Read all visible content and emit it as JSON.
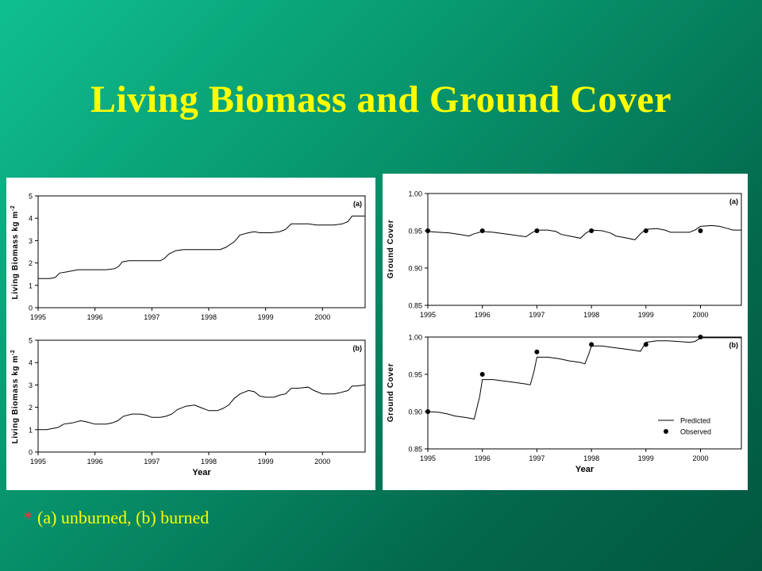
{
  "slide": {
    "title": "Living Biomass and Ground Cover",
    "footnote_bullet": "*",
    "footnote": "(a) unburned, (b) burned"
  },
  "colors": {
    "background": "#03684c",
    "title": "#ffff00",
    "bullet": "#ff3030",
    "line": "#000000"
  },
  "chart_data": [
    {
      "id": "biomass-a",
      "type": "line",
      "panel_label": "(a)",
      "ylabel": "Living Biomass kg m",
      "ylabel_sup": "-2",
      "xlabel": "",
      "x_ticks": [
        "1995",
        "1996",
        "1997",
        "1998",
        "1999",
        "2000"
      ],
      "xlim": [
        1995,
        2000.75
      ],
      "ylim": [
        0,
        5
      ],
      "y_ticks": [
        "0",
        "1",
        "2",
        "3",
        "4",
        "5"
      ],
      "series": [
        {
          "x": [
            1995.0,
            1995.08,
            1995.2,
            1995.3,
            1995.38,
            1995.5,
            1995.6,
            1995.7,
            1995.85,
            1996.0,
            1996.2,
            1996.35,
            1996.42,
            1996.48,
            1996.6,
            1996.8,
            1997.0,
            1997.15,
            1997.22,
            1997.3,
            1997.42,
            1997.55,
            1997.7,
            1997.85,
            1998.0,
            1998.2,
            1998.3,
            1998.45,
            1998.55,
            1998.7,
            1998.8,
            1998.9,
            1999.1,
            1999.25,
            1999.35,
            1999.45,
            1999.55,
            1999.75,
            1999.9,
            2000.0,
            2000.2,
            2000.35,
            2000.45,
            2000.52,
            2000.6,
            2000.75
          ],
          "y": [
            1.3,
            1.3,
            1.3,
            1.35,
            1.55,
            1.6,
            1.65,
            1.7,
            1.7,
            1.7,
            1.7,
            1.75,
            1.85,
            2.05,
            2.1,
            2.1,
            2.1,
            2.1,
            2.2,
            2.4,
            2.55,
            2.6,
            2.6,
            2.6,
            2.6,
            2.6,
            2.7,
            2.95,
            3.25,
            3.35,
            3.4,
            3.35,
            3.35,
            3.4,
            3.5,
            3.75,
            3.75,
            3.75,
            3.7,
            3.7,
            3.7,
            3.75,
            3.85,
            4.1,
            4.1,
            4.1
          ]
        }
      ]
    },
    {
      "id": "biomass-b",
      "type": "line",
      "panel_label": "(b)",
      "ylabel": "Living Biomass kg m",
      "ylabel_sup": "-2",
      "xlabel": "Year",
      "x_ticks": [
        "1995",
        "1996",
        "1997",
        "1998",
        "1999",
        "2000"
      ],
      "xlim": [
        1995,
        2000.75
      ],
      "ylim": [
        0,
        5
      ],
      "y_ticks": [
        "0",
        "1",
        "2",
        "3",
        "4",
        "5"
      ],
      "series": [
        {
          "x": [
            1995.0,
            1995.15,
            1995.25,
            1995.35,
            1995.45,
            1995.6,
            1995.75,
            1995.85,
            1996.0,
            1996.2,
            1996.3,
            1996.4,
            1996.5,
            1996.65,
            1996.8,
            1996.9,
            1997.0,
            1997.15,
            1997.25,
            1997.35,
            1997.45,
            1997.6,
            1997.75,
            1997.85,
            1998.0,
            1998.15,
            1998.25,
            1998.35,
            1998.45,
            1998.55,
            1998.7,
            1998.8,
            1998.9,
            1999.0,
            1999.15,
            1999.25,
            1999.35,
            1999.45,
            1999.55,
            1999.75,
            1999.85,
            2000.0,
            2000.2,
            2000.3,
            2000.45,
            2000.52,
            2000.6,
            2000.75
          ],
          "y": [
            1.0,
            1.0,
            1.05,
            1.1,
            1.25,
            1.3,
            1.4,
            1.35,
            1.25,
            1.25,
            1.3,
            1.4,
            1.6,
            1.7,
            1.7,
            1.65,
            1.55,
            1.55,
            1.6,
            1.7,
            1.9,
            2.05,
            2.1,
            2.0,
            1.85,
            1.85,
            1.95,
            2.1,
            2.4,
            2.6,
            2.75,
            2.7,
            2.5,
            2.45,
            2.45,
            2.55,
            2.6,
            2.85,
            2.85,
            2.9,
            2.75,
            2.6,
            2.6,
            2.65,
            2.75,
            2.95,
            2.95,
            3.0
          ]
        }
      ]
    },
    {
      "id": "cover-a",
      "type": "line",
      "panel_label": "(a)",
      "ylabel": "Ground Cover",
      "xlabel": "",
      "x_ticks": [
        "1995",
        "1996",
        "1997",
        "1998",
        "1999",
        "2000"
      ],
      "xlim": [
        1995,
        2000.75
      ],
      "ylim": [
        0.85,
        1.0
      ],
      "y_ticks": [
        "0.85",
        "0.90",
        "0.95",
        "1.00"
      ],
      "series": [
        {
          "name": "Predicted",
          "x": [
            1995.0,
            1995.2,
            1995.4,
            1995.6,
            1995.75,
            1995.85,
            1996.0,
            1996.2,
            1996.4,
            1996.6,
            1996.8,
            1996.9,
            1997.0,
            1997.2,
            1997.35,
            1997.45,
            1997.6,
            1997.8,
            1997.9,
            1998.0,
            1998.2,
            1998.35,
            1998.45,
            1998.6,
            1998.8,
            1998.9,
            1999.0,
            1999.2,
            1999.35,
            1999.45,
            1999.6,
            1999.8,
            1999.9,
            2000.0,
            2000.2,
            2000.35,
            2000.5,
            2000.6,
            2000.75
          ],
          "y": [
            0.949,
            0.948,
            0.947,
            0.945,
            0.943,
            0.946,
            0.949,
            0.948,
            0.946,
            0.944,
            0.942,
            0.947,
            0.951,
            0.951,
            0.949,
            0.945,
            0.943,
            0.94,
            0.947,
            0.951,
            0.95,
            0.947,
            0.943,
            0.941,
            0.938,
            0.946,
            0.952,
            0.953,
            0.951,
            0.948,
            0.948,
            0.948,
            0.951,
            0.956,
            0.957,
            0.956,
            0.953,
            0.951,
            0.951
          ]
        },
        {
          "name": "Observed",
          "x": [
            1995.0,
            1996.0,
            1997.0,
            1998.0,
            1999.0,
            2000.0
          ],
          "y": [
            0.95,
            0.95,
            0.95,
            0.95,
            0.95,
            0.95
          ]
        }
      ]
    },
    {
      "id": "cover-b",
      "type": "line",
      "panel_label": "(b)",
      "ylabel": "Ground Cover",
      "xlabel": "Year",
      "x_ticks": [
        "1995",
        "1996",
        "1997",
        "1998",
        "1999",
        "2000"
      ],
      "xlim": [
        1995,
        2000.75
      ],
      "ylim": [
        0.85,
        1.0
      ],
      "y_ticks": [
        "0.85",
        "0.90",
        "0.95",
        "1.00"
      ],
      "legend": {
        "position": "bottom-right",
        "entries": [
          "Predicted",
          "Observed"
        ]
      },
      "series": [
        {
          "name": "Predicted",
          "x": [
            1995.0,
            1995.2,
            1995.35,
            1995.5,
            1995.7,
            1995.85,
            1995.95,
            1996.0,
            1996.2,
            1996.4,
            1996.6,
            1996.8,
            1996.88,
            1996.95,
            1997.0,
            1997.2,
            1997.4,
            1997.6,
            1997.8,
            1997.88,
            1997.95,
            1998.0,
            1998.2,
            1998.4,
            1998.6,
            1998.8,
            1998.9,
            1999.0,
            1999.2,
            1999.4,
            1999.6,
            1999.8,
            1999.9,
            2000.0,
            2000.3,
            2000.5,
            2000.75
          ],
          "y": [
            0.9,
            0.899,
            0.897,
            0.894,
            0.892,
            0.89,
            0.92,
            0.943,
            0.943,
            0.941,
            0.939,
            0.937,
            0.936,
            0.955,
            0.973,
            0.973,
            0.971,
            0.968,
            0.966,
            0.964,
            0.977,
            0.988,
            0.988,
            0.986,
            0.984,
            0.982,
            0.981,
            0.993,
            0.995,
            0.995,
            0.994,
            0.993,
            0.994,
            0.999,
            0.999,
            0.999,
            0.999
          ]
        },
        {
          "name": "Observed",
          "x": [
            1995.0,
            1996.0,
            1997.0,
            1998.0,
            1999.0,
            2000.0
          ],
          "y": [
            0.9,
            0.95,
            0.98,
            0.99,
            0.99,
            1.0
          ]
        }
      ]
    }
  ]
}
